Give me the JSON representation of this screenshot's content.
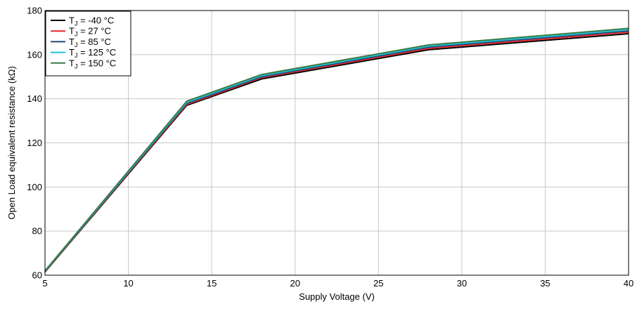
{
  "chart_data": {
    "type": "line",
    "title": "",
    "xlabel": "Supply Voltage (V)",
    "ylabel": "Open Load equivalent resistance (kΩ)",
    "xlim": [
      5,
      40
    ],
    "ylim": [
      60,
      180
    ],
    "x_ticks": [
      5,
      10,
      15,
      20,
      25,
      30,
      35,
      40
    ],
    "y_ticks": [
      60,
      80,
      100,
      120,
      140,
      160,
      180
    ],
    "x_tick_labels": [
      "5",
      "10",
      "15",
      "20",
      "25",
      "30",
      "35",
      "40"
    ],
    "y_tick_labels": [
      "60",
      "80",
      "100",
      "120",
      "140",
      "160",
      "180"
    ],
    "grid": true,
    "legend_position": "top-left",
    "x": [
      5,
      13.5,
      18,
      28,
      40
    ],
    "series": [
      {
        "name": "-40 °C",
        "color": "#000000",
        "values": [
          61.5,
          137.0,
          149.0,
          162.2,
          169.5
        ]
      },
      {
        "name": "27 °C",
        "color": "#e8262b",
        "values": [
          61.7,
          137.4,
          149.6,
          162.8,
          170.2
        ]
      },
      {
        "name": "85 °C",
        "color": "#1f4e79",
        "values": [
          61.8,
          137.9,
          150.0,
          163.4,
          170.8
        ]
      },
      {
        "name": "125 °C",
        "color": "#22c0d6",
        "values": [
          61.9,
          138.4,
          150.5,
          163.9,
          171.3
        ]
      },
      {
        "name": "150 °C",
        "color": "#3a7d44",
        "values": [
          62.0,
          138.9,
          151.0,
          164.4,
          171.9
        ]
      }
    ],
    "legend_prefix": "T",
    "legend_subscript": "J",
    "legend_equals": " = "
  }
}
